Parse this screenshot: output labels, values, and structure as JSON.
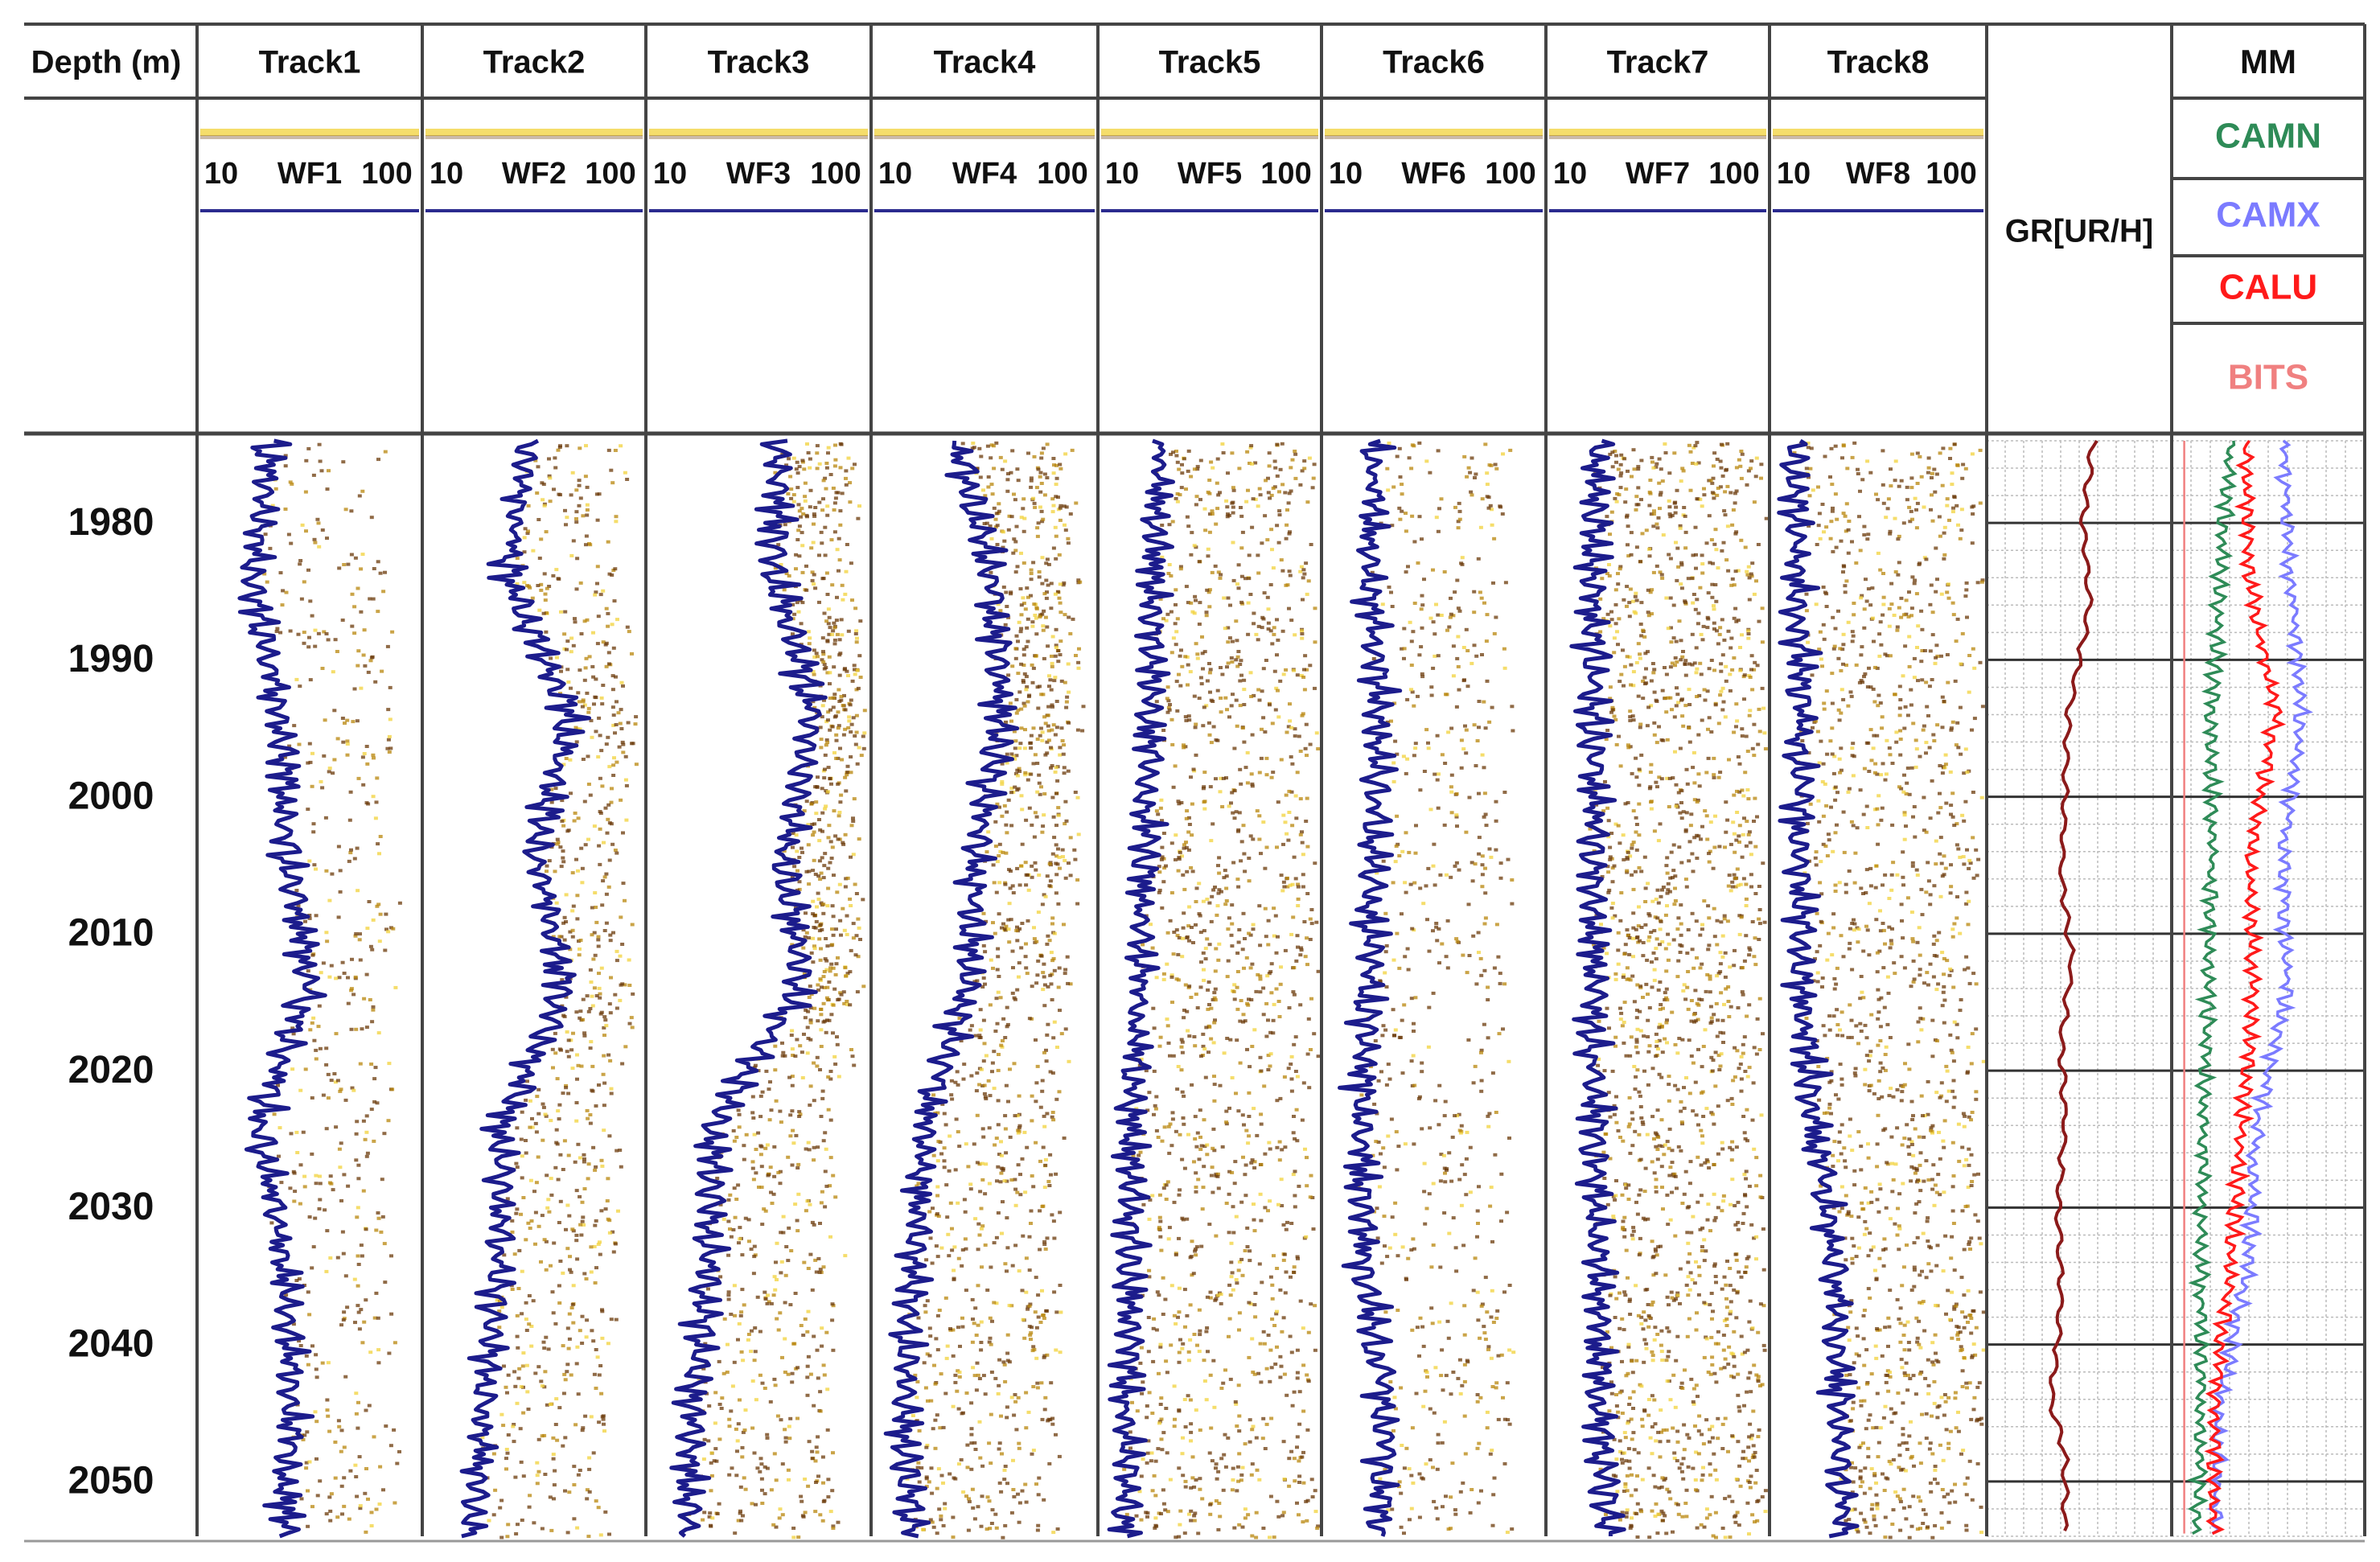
{
  "chart_data": {
    "type": "line",
    "title": "",
    "depth_header": "Depth (m)",
    "depth_axis": {
      "ticks": [
        1980,
        1990,
        2000,
        2010,
        2020,
        2030,
        2040,
        2050
      ],
      "tick_labels": [
        "1980",
        "1990",
        "2000",
        "2010",
        "2020",
        "2030",
        "2040",
        "2050"
      ],
      "range": [
        1974,
        2054
      ],
      "direction": "down"
    },
    "tracks": [
      {
        "name": "Track1",
        "curve": "WF1",
        "scale_min": "10",
        "scale_max": "100",
        "depth": [
          1974,
          1984,
          1994,
          2004,
          2014,
          2024,
          2034,
          2044,
          2054
        ],
        "value": [
          38,
          32,
          42,
          46,
          54,
          34,
          44,
          48,
          44
        ]
      },
      {
        "name": "Track2",
        "curve": "WF2",
        "scale_min": "10",
        "scale_max": "100",
        "depth": [
          1974,
          1984,
          1994,
          2004,
          2014,
          2024,
          2034,
          2044,
          2054
        ],
        "value": [
          52,
          44,
          70,
          56,
          68,
          42,
          40,
          34,
          30
        ]
      },
      {
        "name": "Track3",
        "curve": "WF3",
        "scale_min": "10",
        "scale_max": "100",
        "depth": [
          1974,
          1984,
          1994,
          2004,
          2014,
          2024,
          2034,
          2044,
          2054
        ],
        "value": [
          64,
          62,
          78,
          66,
          72,
          36,
          34,
          28,
          26
        ]
      },
      {
        "name": "Track4",
        "curve": "WF4",
        "scale_min": "10",
        "scale_max": "100",
        "depth": [
          1974,
          1984,
          1994,
          2004,
          2014,
          2024,
          2034,
          2044,
          2054
        ],
        "value": [
          44,
          58,
          62,
          52,
          48,
          30,
          26,
          22,
          24
        ]
      },
      {
        "name": "Track5",
        "curve": "WF5",
        "scale_min": "10",
        "scale_max": "100",
        "depth": [
          1974,
          1984,
          1994,
          2004,
          2014,
          2024,
          2034,
          2044,
          2054
        ],
        "value": [
          34,
          32,
          30,
          28,
          26,
          22,
          22,
          20,
          20
        ]
      },
      {
        "name": "Track6",
        "curve": "WF6",
        "scale_min": "10",
        "scale_max": "100",
        "depth": [
          1974,
          1984,
          1994,
          2004,
          2014,
          2024,
          2034,
          2044,
          2054
        ],
        "value": [
          30,
          28,
          32,
          30,
          28,
          24,
          26,
          34,
          32
        ]
      },
      {
        "name": "Track7",
        "curve": "WF7",
        "scale_min": "10",
        "scale_max": "100",
        "depth": [
          1974,
          1984,
          1994,
          2004,
          2014,
          2024,
          2034,
          2044,
          2054
        ],
        "value": [
          30,
          28,
          28,
          28,
          28,
          28,
          30,
          30,
          34
        ]
      },
      {
        "name": "Track8",
        "curve": "WF8",
        "scale_min": "10",
        "scale_max": "100",
        "depth": [
          1974,
          1984,
          1994,
          2004,
          2014,
          2024,
          2034,
          2044,
          2054
        ],
        "value": [
          18,
          20,
          22,
          20,
          22,
          28,
          36,
          38,
          40
        ]
      }
    ],
    "gr_track": {
      "label": "GR[UR/H]",
      "color": "#8b1a1a",
      "depth": [
        1974,
        1980,
        1986,
        1990,
        1994,
        2000,
        2006,
        2012,
        2018,
        2024,
        2030,
        2036,
        2040,
        2044,
        2048,
        2054
      ],
      "value": [
        0.58,
        0.52,
        0.56,
        0.5,
        0.44,
        0.42,
        0.4,
        0.46,
        0.4,
        0.42,
        0.38,
        0.4,
        0.38,
        0.34,
        0.42,
        0.42
      ]
    },
    "mm_track": {
      "label": "MM",
      "series": [
        {
          "name": "CAMN",
          "color": "#2e8b57",
          "depth": [
            1974,
            1984,
            1994,
            2004,
            2014,
            2024,
            2034,
            2044,
            2054
          ],
          "value": [
            0.3,
            0.24,
            0.2,
            0.2,
            0.18,
            0.15,
            0.14,
            0.14,
            0.12
          ]
        },
        {
          "name": "CAMX",
          "color": "#7b7bff",
          "depth": [
            1974,
            1984,
            1994,
            2004,
            2014,
            2024,
            2034,
            2044,
            2054
          ],
          "value": [
            0.58,
            0.62,
            0.68,
            0.58,
            0.6,
            0.44,
            0.4,
            0.24,
            0.22
          ]
        },
        {
          "name": "CALU",
          "color": "#ff1a1a",
          "depth": [
            1974,
            1984,
            1994,
            2004,
            2014,
            2024,
            2034,
            2044,
            2054
          ],
          "value": [
            0.38,
            0.4,
            0.54,
            0.4,
            0.42,
            0.36,
            0.3,
            0.22,
            0.2
          ]
        },
        {
          "name": "BITS",
          "color": "#f08080",
          "depth": [
            1974,
            1984,
            1994,
            2004,
            2014,
            2024,
            2034,
            2044,
            2054
          ],
          "value": [
            0.05,
            0.05,
            0.05,
            0.05,
            0.05,
            0.05,
            0.05,
            0.05,
            0.05
          ]
        }
      ]
    }
  },
  "colors": {
    "waveform_curve": "#1c1c8c",
    "density_dark": "#6b3a0a",
    "density_mid": "#b8860b",
    "density_light": "#f2d13a",
    "scale_line": "#2b2b8f"
  }
}
